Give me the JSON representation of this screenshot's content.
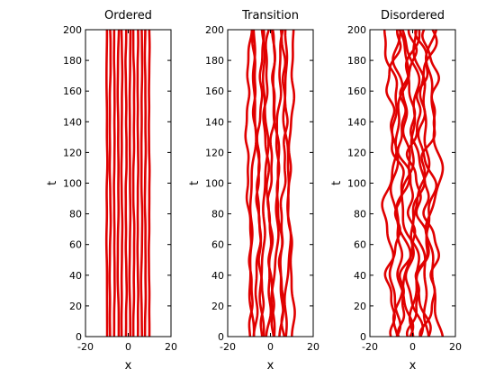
{
  "chart_data": [
    {
      "type": "line",
      "title": "Ordered",
      "xlabel": "x",
      "ylabel": "t",
      "xlim": [
        -20,
        20
      ],
      "ylim": [
        0,
        200
      ],
      "x_ticks": [
        "-20",
        "0",
        "20"
      ],
      "y_ticks": [
        "0",
        "20",
        "40",
        "60",
        "80",
        "100",
        "120",
        "140",
        "160",
        "180",
        "200"
      ],
      "grid": false,
      "line_color": "#e00000",
      "series_base_x": [
        -10,
        -8.5,
        -6.5,
        -4.7,
        -3,
        -1,
        0.8,
        2.6,
        4.5,
        6.3,
        8,
        9.8
      ],
      "series_amplitude": [
        0.25,
        0.3,
        0.2,
        0.35,
        0.25,
        0.3,
        0.25,
        0.35,
        0.2,
        0.3,
        0.25,
        0.2
      ]
    },
    {
      "type": "line",
      "title": "Transition",
      "xlabel": "x",
      "ylabel": "t",
      "xlim": [
        -20,
        20
      ],
      "ylim": [
        0,
        200
      ],
      "x_ticks": [
        "-20",
        "0",
        "20"
      ],
      "y_ticks": [
        "0",
        "20",
        "40",
        "60",
        "80",
        "100",
        "120",
        "140",
        "160",
        "180",
        "200"
      ],
      "grid": false,
      "line_color": "#e00000",
      "series_base_x": [
        -10,
        -8.3,
        -6.5,
        -4.8,
        -3,
        -1.2,
        0.6,
        2.4,
        4.2,
        6,
        7.8,
        9.6
      ],
      "series_amplitude": [
        1.8,
        2.0,
        2.2,
        1.9,
        2.1,
        2.3,
        2.0,
        2.2,
        1.9,
        2.1,
        2.0,
        1.8
      ]
    },
    {
      "type": "line",
      "title": "Disordered",
      "xlabel": "x",
      "ylabel": "t",
      "xlim": [
        -20,
        20
      ],
      "ylim": [
        0,
        200
      ],
      "x_ticks": [
        "-20",
        "0",
        "20"
      ],
      "y_ticks": [
        "0",
        "20",
        "40",
        "60",
        "80",
        "100",
        "120",
        "140",
        "160",
        "180",
        "200"
      ],
      "grid": false,
      "line_color": "#e00000",
      "series_base_x": [
        -10,
        -8.2,
        -6.3,
        -4.5,
        -2.7,
        -0.9,
        0.9,
        2.7,
        4.5,
        6.3,
        8.1,
        10
      ],
      "series_amplitude": [
        4.5,
        5.0,
        5.5,
        4.8,
        5.2,
        5.6,
        5.0,
        5.4,
        4.9,
        5.3,
        5.1,
        4.6
      ]
    }
  ]
}
